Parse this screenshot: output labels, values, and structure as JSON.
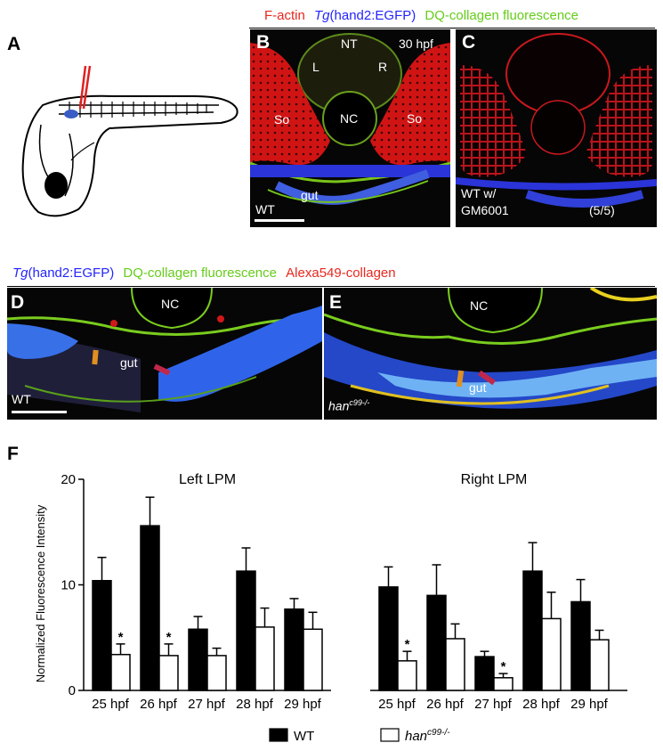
{
  "panel_letters": {
    "a": "A",
    "b": "B",
    "c": "C",
    "d": "D",
    "e": "E",
    "f": "F"
  },
  "header_top": {
    "f_actin": "F-actin",
    "tg_italic": "Tg",
    "tg_rest": "(hand2:EGFP)",
    "dq": "DQ-collagen fluorescence",
    "colors": {
      "red": "#e8281f",
      "blue": "#2424ff",
      "green": "#66cc1a"
    }
  },
  "header_mid": {
    "tg_italic": "Tg",
    "tg_rest": "(hand2:EGFP)",
    "dq": "DQ-collagen fluorescence",
    "alexa": "Alexa549-collagen"
  },
  "panel_b": {
    "nt": "NT",
    "hpf": "30 hpf",
    "l": "L",
    "r": "R",
    "nc": "NC",
    "so_left": "So",
    "so_right": "So",
    "gut": "gut",
    "wt": "WT"
  },
  "panel_c": {
    "line1": "WT w/",
    "line2": "GM6001",
    "count": "(5/5)"
  },
  "panel_d": {
    "nc": "NC",
    "gut": "gut",
    "wt": "WT"
  },
  "panel_e": {
    "nc": "NC",
    "gut": "gut",
    "han": "han",
    "sup": "c99-/-"
  },
  "chart_data": {
    "type": "bar",
    "ylabel": "Normalized Fluorescence Intensity",
    "ylim": [
      0,
      20
    ],
    "yticks": [
      0,
      10,
      20
    ],
    "groups": [
      {
        "title": "Left LPM",
        "categories": [
          "25 hpf",
          "26 hpf",
          "27 hpf",
          "28 hpf",
          "29 hpf"
        ],
        "series": [
          {
            "name": "WT",
            "values": [
              10.4,
              15.6,
              5.8,
              11.3,
              7.7
            ],
            "errors": [
              2.2,
              2.7,
              1.2,
              2.2,
              1.0
            ]
          },
          {
            "name": "han c99-/-",
            "values": [
              3.4,
              3.3,
              3.3,
              6.0,
              5.8
            ],
            "errors": [
              1.0,
              1.1,
              0.7,
              1.8,
              1.6
            ]
          }
        ],
        "significant": [
          true,
          true,
          false,
          false,
          false
        ]
      },
      {
        "title": "Right LPM",
        "categories": [
          "25 hpf",
          "26 hpf",
          "27 hpf",
          "28 hpf",
          "29 hpf"
        ],
        "series": [
          {
            "name": "WT",
            "values": [
              9.8,
              9.0,
              3.2,
              11.3,
              8.4
            ],
            "errors": [
              1.9,
              2.9,
              0.5,
              2.7,
              2.1
            ]
          },
          {
            "name": "han c99-/-",
            "values": [
              2.8,
              4.9,
              1.2,
              6.8,
              4.8
            ],
            "errors": [
              0.9,
              1.4,
              0.4,
              2.5,
              0.9
            ]
          }
        ],
        "significant": [
          true,
          false,
          true,
          false,
          false
        ]
      }
    ],
    "legend": {
      "wt": "WT",
      "han": "han",
      "han_sup": "c99-/-"
    },
    "star": "*",
    "colors": {
      "wt": "#000000",
      "han": "#ffffff"
    }
  }
}
